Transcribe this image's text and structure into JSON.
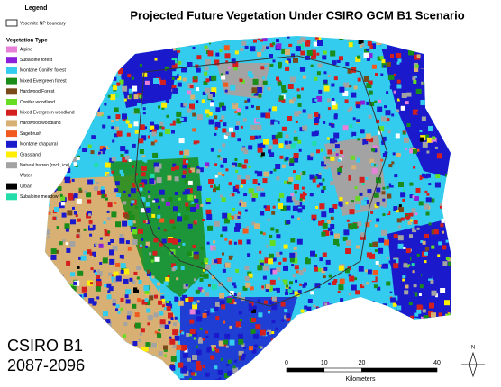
{
  "title": "Projected Future Vegetation Under CSIRO GCM B1 Scenario",
  "legend": {
    "title": "Legend",
    "boundary_label": "Yosemite NP boundary",
    "heading": "Vegetation Type",
    "items": [
      {
        "label": "Alpine",
        "color": "#e680d9"
      },
      {
        "label": "Subalpine forest",
        "color": "#8c1fd9"
      },
      {
        "label": "Montane Conifer forest",
        "color": "#33ccee"
      },
      {
        "label": "Mixed Evergreen forest",
        "color": "#1a8c1a"
      },
      {
        "label": "Hardwood Forest",
        "color": "#7a4a1a"
      },
      {
        "label": "Conifer woodland",
        "color": "#66dd22"
      },
      {
        "label": "Mixed Evergreen woodland",
        "color": "#d41f1f"
      },
      {
        "label": "Hardwood woodland",
        "color": "#d9b073"
      },
      {
        "label": "Sagebrush",
        "color": "#f05a1f"
      },
      {
        "label": "Montane chaparral",
        "color": "#1a1acc"
      },
      {
        "label": "Grassland",
        "color": "#ffee00"
      },
      {
        "label": "Natural barren (rock, ice)",
        "color": "#a3a3a3"
      },
      {
        "label": "Water",
        "color": "#ffffff"
      },
      {
        "label": "Urban",
        "color": "#000000"
      },
      {
        "label": "Subalpine meadow",
        "color": "#22ddaa"
      }
    ]
  },
  "scenario": {
    "model": "CSIRO B1",
    "period": "2087-2096"
  },
  "scale_bar": {
    "ticks": [
      0,
      10,
      20,
      40
    ],
    "unit": "Kilometers"
  },
  "north_arrow": "N"
}
